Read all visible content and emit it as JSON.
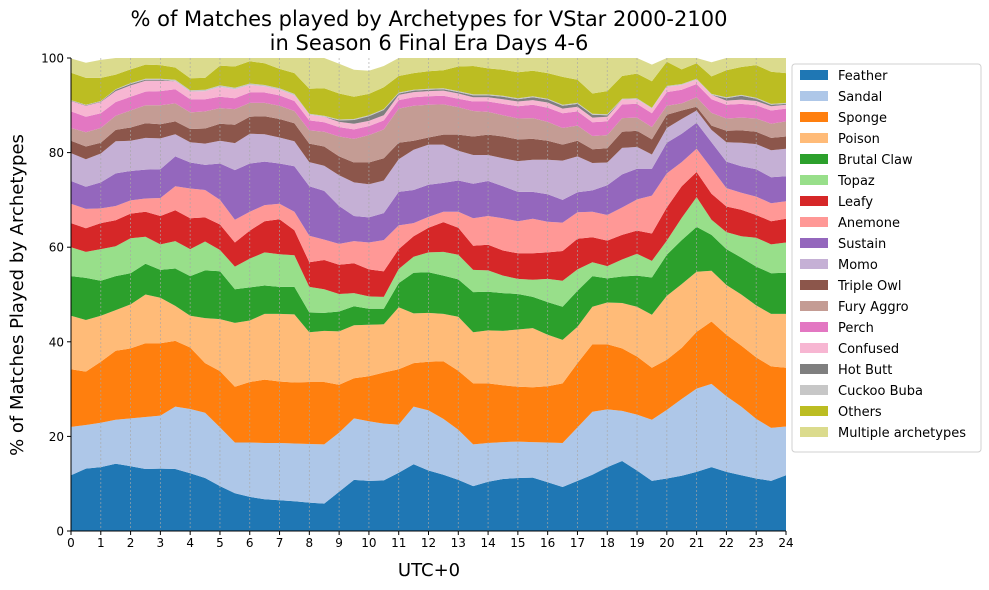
{
  "chart_data": {
    "type": "area",
    "stacked": true,
    "title_line1": "% of Matches played by Archetypes for VStar 2000-2100",
    "title_line2": "in Season 6 Final Era Days 4-6",
    "xlabel": "UTC+0",
    "ylabel": "% of Matches Played by Archetypes",
    "xlim": [
      0,
      24
    ],
    "ylim": [
      0,
      100
    ],
    "x_ticks": [
      "0",
      "1",
      "2",
      "3",
      "4",
      "5",
      "6",
      "7",
      "8",
      "9",
      "10",
      "11",
      "12",
      "13",
      "14",
      "15",
      "16",
      "17",
      "18",
      "19",
      "20",
      "21",
      "22",
      "23",
      "24"
    ],
    "y_ticks": [
      "0",
      "20",
      "40",
      "60",
      "80",
      "100"
    ],
    "vertical_grid": true,
    "legend_position": "outside-right",
    "x": [
      0,
      0.5,
      1,
      1.5,
      2,
      2.5,
      3,
      3.5,
      4,
      4.5,
      5,
      5.5,
      6,
      6.5,
      7,
      7.5,
      8,
      8.5,
      9,
      9.5,
      10,
      10.5,
      11,
      11.5,
      12,
      12.5,
      13,
      13.5,
      14,
      14.5,
      15,
      15.5,
      16,
      16.5,
      17,
      17.5,
      18,
      18.5,
      19,
      19.5,
      20,
      20.5,
      21,
      21.5,
      22,
      22.5,
      23,
      23.5,
      24
    ],
    "series": [
      {
        "name": "Feather",
        "color": "#1f77b4",
        "values": [
          11.8,
          13.2,
          13.5,
          14.2,
          13.7,
          13.1,
          13.2,
          13.1,
          12.2,
          11.2,
          9.5,
          8.0,
          7.2,
          6.7,
          6.5,
          6.3,
          6.0,
          5.8,
          8.3,
          10.8,
          10.6,
          10.7,
          12.3,
          14.1,
          12.8,
          11.9,
          10.8,
          9.5,
          10.4,
          11.0,
          11.2,
          11.3,
          10.3,
          9.3,
          10.6,
          11.9,
          13.5,
          14.8,
          12.8,
          10.6,
          11.1,
          11.7,
          12.5,
          13.5,
          12.5,
          11.8,
          11.1,
          10.6,
          11.8
        ]
      },
      {
        "name": "Sandal",
        "color": "#aec7e8",
        "values": [
          10.2,
          9.2,
          9.4,
          9.3,
          10.1,
          11.0,
          11.2,
          13.2,
          13.6,
          13.8,
          12.4,
          10.7,
          11.5,
          11.9,
          12.1,
          12.2,
          12.4,
          12.5,
          12.5,
          13.0,
          12.6,
          12.0,
          10.2,
          12.2,
          12.7,
          11.8,
          10.6,
          8.8,
          8.2,
          7.8,
          7.7,
          7.5,
          8.4,
          9.3,
          11.3,
          13.3,
          12.2,
          10.6,
          11.8,
          12.9,
          14.5,
          16.2,
          17.6,
          17.6,
          16.0,
          14.5,
          12.6,
          11.2,
          10.3
        ]
      },
      {
        "name": "Sponge",
        "color": "#ff7f0e",
        "values": [
          12.2,
          11.3,
          12.9,
          14.6,
          14.8,
          15.6,
          15.3,
          13.9,
          13.0,
          10.5,
          11.9,
          11.8,
          12.8,
          13.4,
          13.0,
          12.9,
          13.1,
          13.2,
          10.1,
          8.5,
          9.5,
          10.8,
          11.7,
          9.2,
          10.3,
          12.2,
          12.5,
          12.9,
          12.6,
          12.0,
          11.6,
          11.6,
          11.9,
          12.6,
          13.6,
          14.3,
          13.8,
          13.2,
          12.3,
          11.0,
          10.6,
          10.8,
          12.0,
          13.2,
          13.0,
          12.9,
          13.0,
          13.0,
          12.4
        ]
      },
      {
        "name": "Poison",
        "color": "#ffbb78",
        "values": [
          11.3,
          10.9,
          9.7,
          8.6,
          9.3,
          10.3,
          9.6,
          7.4,
          6.7,
          9.5,
          11.0,
          13.5,
          13.0,
          13.9,
          14.3,
          14.4,
          10.5,
          10.8,
          11.3,
          11.2,
          10.9,
          10.2,
          13.1,
          10.5,
          10.3,
          10.0,
          11.4,
          10.8,
          11.2,
          11.5,
          12.1,
          12.5,
          10.9,
          9.2,
          7.7,
          7.9,
          8.8,
          9.6,
          10.5,
          11.2,
          13.5,
          13.5,
          12.7,
          10.7,
          10.5,
          10.8,
          11.0,
          11.1,
          11.4
        ]
      },
      {
        "name": "Brutal Claw",
        "color": "#2ca02c",
        "values": [
          8.4,
          8.9,
          7.4,
          7.2,
          6.6,
          6.5,
          5.9,
          7.9,
          8.4,
          10.1,
          10.1,
          7.1,
          7.0,
          6.0,
          5.7,
          5.8,
          4.2,
          3.8,
          4.2,
          4.0,
          3.4,
          3.3,
          5.1,
          8.6,
          8.6,
          8.1,
          7.9,
          8.5,
          8.2,
          8.0,
          7.5,
          6.6,
          6.9,
          7.0,
          7.6,
          6.5,
          5.1,
          5.6,
          6.6,
          7.9,
          8.7,
          9.3,
          9.5,
          7.6,
          7.6,
          7.8,
          8.2,
          8.6,
          8.7
        ]
      },
      {
        "name": "Topaz",
        "color": "#98df8a",
        "values": [
          6.1,
          5.5,
          6.7,
          6.3,
          7.4,
          5.7,
          5.4,
          5.8,
          5.7,
          6.1,
          4.5,
          4.8,
          6.1,
          7.0,
          6.9,
          6.7,
          5.4,
          5.0,
          3.7,
          2.8,
          2.6,
          2.5,
          3.0,
          3.4,
          4.2,
          5.0,
          5.2,
          4.7,
          4.5,
          3.7,
          3.2,
          3.6,
          4.9,
          5.5,
          4.5,
          2.9,
          2.6,
          3.6,
          4.6,
          3.5,
          3.0,
          4.7,
          6.3,
          3.2,
          3.6,
          4.5,
          6.1,
          6.1,
          6.4
        ]
      },
      {
        "name": "Leafy",
        "color": "#d62728",
        "values": [
          5.1,
          5.0,
          5.5,
          5.5,
          5.2,
          5.3,
          6.0,
          6.5,
          6.5,
          5.1,
          5.4,
          5.1,
          5.9,
          6.6,
          7.4,
          5.3,
          5.2,
          6.2,
          6.2,
          6.3,
          5.7,
          5.4,
          4.2,
          4.3,
          5.2,
          6.3,
          5.7,
          5.1,
          5.4,
          5.3,
          5.4,
          5.6,
          5.6,
          6.3,
          6.5,
          5.3,
          5.4,
          5.2,
          4.9,
          5.8,
          7.0,
          6.7,
          5.3,
          5.5,
          5.4,
          5.6,
          4.8,
          4.9,
          5.0
        ]
      },
      {
        "name": "Anemone",
        "color": "#ff9896",
        "values": [
          4.1,
          4.1,
          3.1,
          3.0,
          2.8,
          2.8,
          3.8,
          5.1,
          6.3,
          5.8,
          5.2,
          4.8,
          4.0,
          3.4,
          3.3,
          3.9,
          5.6,
          4.3,
          4.4,
          4.7,
          5.7,
          6.6,
          5.0,
          2.8,
          2.3,
          2.2,
          3.4,
          5.8,
          6.1,
          6.8,
          6.8,
          7.3,
          6.5,
          6.0,
          5.6,
          5.4,
          5.4,
          5.8,
          6.6,
          8.0,
          7.2,
          5.1,
          4.9,
          5.4,
          3.9,
          3.6,
          3.9,
          3.8,
          3.7
        ]
      },
      {
        "name": "Sustain",
        "color": "#9467bd",
        "values": [
          4.8,
          4.7,
          5.5,
          6.9,
          6.2,
          6.1,
          6.1,
          6.3,
          5.5,
          5.3,
          7.7,
          10.5,
          10.2,
          9.2,
          8.5,
          9.6,
          10.5,
          10.3,
          8.0,
          5.3,
          5.3,
          5.7,
          7.1,
          7.0,
          6.8,
          6.1,
          6.6,
          7.3,
          7.4,
          6.8,
          6.2,
          5.7,
          5.8,
          4.8,
          4.2,
          4.5,
          6.3,
          7.0,
          6.5,
          5.7,
          6.5,
          6.0,
          5.5,
          5.5,
          5.6,
          5.6,
          5.8,
          5.5,
          5.3
        ]
      },
      {
        "name": "Momo",
        "color": "#c5b0d5",
        "values": [
          5.9,
          5.8,
          6.1,
          6.8,
          6.4,
          6.7,
          6.5,
          4.7,
          4.3,
          4.5,
          4.8,
          5.7,
          6.3,
          5.8,
          5.5,
          5.3,
          5.1,
          5.3,
          6.5,
          7.1,
          7.0,
          6.9,
          6.9,
          8.5,
          8.5,
          8.1,
          6.3,
          6.1,
          5.5,
          5.9,
          6.5,
          6.8,
          7.3,
          8.3,
          7.6,
          5.8,
          4.8,
          5.6,
          4.6,
          3.0,
          3.1,
          3.1,
          2.6,
          2.6,
          4.1,
          5.0,
          5.3,
          5.7,
          5.8
        ]
      },
      {
        "name": "Triple Owl",
        "color": "#8c564b",
        "values": [
          2.6,
          2.7,
          2.3,
          2.4,
          2.8,
          3.1,
          3.0,
          2.7,
          2.8,
          3.2,
          3.6,
          3.9,
          3.6,
          3.8,
          3.9,
          3.8,
          3.9,
          4.1,
          4.0,
          4.2,
          4.6,
          4.7,
          3.5,
          1.9,
          1.5,
          2.1,
          3.4,
          3.9,
          4.3,
          4.6,
          4.6,
          4.4,
          4.0,
          3.4,
          3.3,
          2.9,
          3.0,
          3.4,
          3.4,
          3.2,
          2.8,
          1.8,
          0.8,
          0.9,
          2.4,
          2.6,
          2.6,
          2.6,
          2.6
        ]
      },
      {
        "name": "Fury Aggro",
        "color": "#c49c94",
        "values": [
          2.7,
          3.0,
          3.1,
          3.0,
          3.6,
          3.8,
          4.0,
          3.8,
          3.5,
          3.6,
          3.3,
          3.3,
          2.9,
          2.8,
          2.8,
          2.6,
          2.8,
          3.1,
          4.2,
          5.0,
          5.8,
          6.1,
          7.2,
          7.4,
          6.9,
          6.4,
          5.8,
          5.4,
          4.8,
          4.5,
          4.4,
          4.4,
          4.0,
          3.5,
          3.2,
          2.8,
          2.8,
          2.9,
          2.8,
          2.6,
          1.9,
          1.5,
          2.0,
          2.7,
          2.6,
          2.7,
          2.8,
          3.0,
          3.2
        ]
      },
      {
        "name": "Perch",
        "color": "#e377c2",
        "values": [
          3.5,
          3.3,
          3.1,
          2.9,
          2.9,
          2.9,
          3.0,
          3.0,
          2.8,
          2.6,
          2.4,
          2.3,
          2.2,
          2.2,
          2.2,
          2.1,
          2.1,
          2.0,
          2.0,
          2.0,
          1.9,
          1.9,
          1.8,
          1.8,
          1.8,
          1.8,
          1.8,
          2.0,
          2.2,
          2.4,
          2.6,
          2.8,
          3.0,
          3.1,
          3.0,
          2.9,
          2.9,
          2.9,
          2.9,
          2.9,
          2.9,
          2.9,
          2.8,
          2.9,
          2.9,
          2.9,
          2.8,
          2.8,
          2.7
        ]
      },
      {
        "name": "Confused",
        "color": "#f7b6d2",
        "values": [
          2.2,
          2.3,
          2.4,
          2.3,
          2.4,
          2.3,
          2.2,
          1.7,
          1.6,
          1.7,
          2.1,
          1.9,
          1.6,
          1.3,
          1.2,
          1.2,
          1.2,
          1.2,
          1.1,
          1.2,
          1.1,
          1.1,
          1.1,
          1.1,
          1.1,
          1.1,
          1.1,
          0.9,
          0.9,
          1.0,
          1.0,
          1.0,
          1.1,
          1.0,
          1.0,
          1.0,
          1.0,
          1.0,
          1.0,
          1.0,
          1.1,
          1.0,
          0.9,
          0.9,
          0.9,
          0.9,
          0.9,
          0.9,
          0.8
        ]
      },
      {
        "name": "Hot Butt",
        "color": "#7f7f7f",
        "values": [
          0.1,
          0.1,
          0.1,
          0.3,
          0.3,
          0.2,
          0.2,
          0.0,
          0.0,
          0.0,
          0.0,
          0.0,
          0.0,
          0.0,
          0.0,
          0.0,
          0.0,
          0.0,
          0.3,
          0.8,
          1.0,
          1.1,
          0.3,
          0.3,
          0.3,
          0.3,
          0.3,
          0.4,
          0.4,
          0.5,
          0.5,
          0.6,
          0.6,
          0.6,
          0.6,
          0.6,
          0.3,
          0.0,
          0.0,
          0.0,
          0.0,
          0.0,
          0.0,
          0.0,
          0.5,
          0.8,
          0.5,
          0.3,
          0.2
        ]
      },
      {
        "name": "Cuckoo Buba",
        "color": "#c7c7c7",
        "values": [
          0.1,
          0.1,
          0.1,
          0.1,
          0.2,
          0.2,
          0.2,
          0.3,
          0.3,
          0.3,
          0.3,
          0.3,
          0.3,
          0.3,
          0.3,
          0.3,
          0.2,
          0.2,
          0.2,
          0.2,
          0.2,
          0.2,
          0.2,
          0.2,
          0.2,
          0.2,
          0.2,
          0.2,
          0.2,
          0.2,
          0.2,
          0.2,
          0.2,
          0.2,
          0.2,
          0.2,
          0.2,
          0.2,
          0.2,
          0.2,
          0.2,
          0.2,
          0.2,
          0.2,
          0.2,
          0.2,
          0.2,
          0.2,
          0.2
        ]
      },
      {
        "name": "Others",
        "color": "#bcbd22",
        "values": [
          5.8,
          5.7,
          4.9,
          3.1,
          2.9,
          3.0,
          2.9,
          2.6,
          2.5,
          2.5,
          4.2,
          4.5,
          4.7,
          4.6,
          4.1,
          4.4,
          5.3,
          5.8,
          5.5,
          4.7,
          4.5,
          4.6,
          3.5,
          3.5,
          3.7,
          3.8,
          5.2,
          6.0,
          5.5,
          5.5,
          5.5,
          5.4,
          5.4,
          5.9,
          4.9,
          4.3,
          4.9,
          4.8,
          5.2,
          5.6,
          5.1,
          3.1,
          3.3,
          3.7,
          5.7,
          5.9,
          6.9,
          6.8,
          6.3
        ]
      },
      {
        "name": "Multiple archetypes",
        "color": "#dbdb8d",
        "values": [
          3.0,
          3.2,
          3.8,
          3.8,
          3.3,
          2.0,
          2.4,
          2.6,
          4.4,
          4.4,
          3.2,
          3.1,
          2.7,
          3.3,
          4.3,
          5.2,
          6.5,
          6.6,
          6.3,
          5.7,
          4.9,
          4.5,
          3.8,
          3.5,
          3.3,
          3.3,
          3.4,
          4.6,
          4.8,
          4.8,
          4.9,
          5.5,
          5.9,
          5.6,
          6.1,
          7.6,
          7.4,
          6.2,
          5.6,
          3.5,
          3.4,
          3.4,
          3.2,
          3.0,
          5.7,
          4.6,
          4.3,
          3.9,
          4.2
        ]
      }
    ]
  }
}
